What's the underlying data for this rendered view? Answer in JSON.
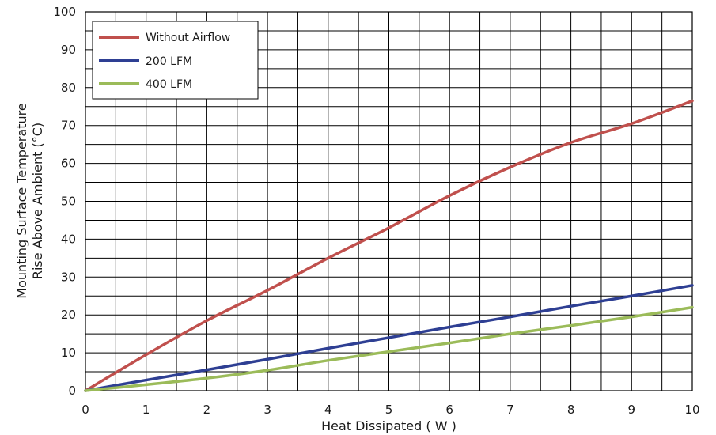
{
  "chart_data": {
    "type": "line",
    "title": "",
    "xlabel": "Heat Dissipated ( W )",
    "ylabel_lines": [
      "Mounting Surface Temperature",
      "Rise Above  Ambient (°C)"
    ],
    "xlim": [
      0,
      10
    ],
    "ylim": [
      0,
      100
    ],
    "x_major_ticks": [
      0,
      1,
      2,
      3,
      4,
      5,
      6,
      7,
      8,
      9,
      10
    ],
    "y_major_ticks": [
      0,
      10,
      20,
      30,
      40,
      50,
      60,
      70,
      80,
      90,
      100
    ],
    "x_tick_labels": [
      "0",
      "1",
      "2",
      "3",
      "4",
      "5",
      "6",
      "7",
      "8",
      "9",
      "10"
    ],
    "y_tick_labels": [
      "0",
      "10",
      "20",
      "30",
      "40",
      "50",
      "60",
      "70",
      "80",
      "90",
      "100"
    ],
    "x_grid_step": 0.5,
    "y_grid_step": 5,
    "grid": true,
    "legend_position": "top-left",
    "series": [
      {
        "name": "Without Airflow",
        "color": "#c0504d",
        "x": [
          0,
          1,
          2,
          3,
          4,
          5,
          6,
          7,
          8,
          9,
          10
        ],
        "y": [
          0,
          9.5,
          18.5,
          26.5,
          35,
          43,
          51.5,
          59,
          65.5,
          70.5,
          76.5
        ]
      },
      {
        "name": "200 LFM",
        "color": "#2e3f93",
        "x": [
          0,
          1,
          2,
          3,
          4,
          5,
          6,
          7,
          8,
          9,
          10
        ],
        "y": [
          0,
          2.8,
          5.5,
          8.3,
          11.2,
          14,
          16.8,
          19.5,
          22.3,
          25,
          27.8
        ]
      },
      {
        "name": "400 LFM",
        "color": "#9bbb59",
        "x": [
          0,
          1,
          2,
          3,
          4,
          5,
          6,
          7,
          8,
          9,
          10
        ],
        "y": [
          0,
          1.6,
          3.3,
          5.4,
          8,
          10.3,
          12.6,
          15,
          17.2,
          19.5,
          22
        ]
      }
    ]
  }
}
